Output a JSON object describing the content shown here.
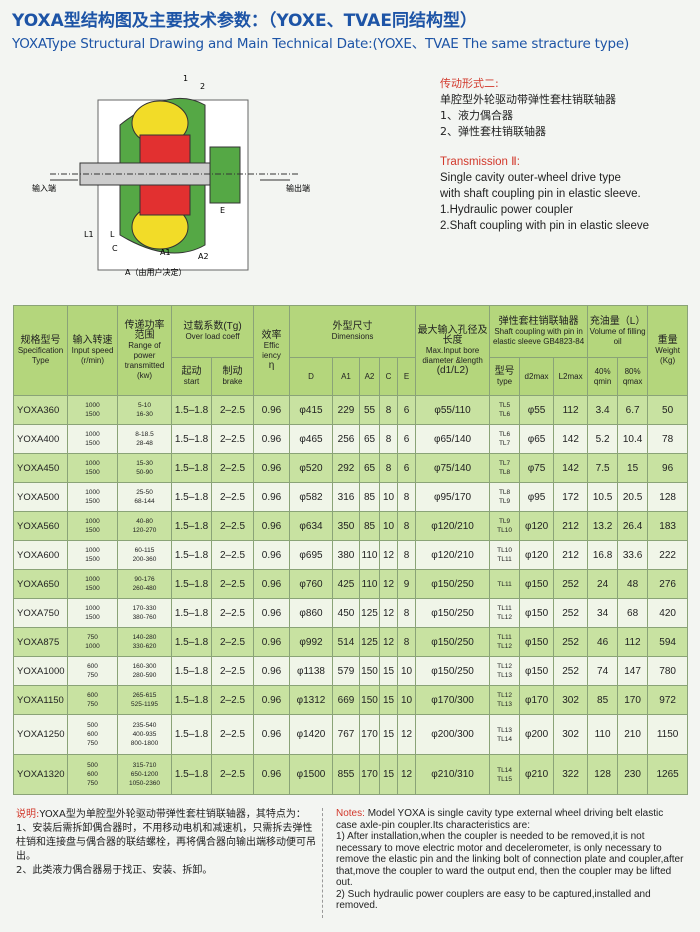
{
  "header": {
    "title_cn": "YOXA型结构图及主要技术参数：（YOXE、TVAE同结构型）",
    "title_en": "YOXAType Structural Drawing and Main Technical Date:(YOXE、TVAE The same stracture type)"
  },
  "diagram": {
    "labels": [
      "1",
      "2",
      "E",
      "L1",
      "L",
      "C",
      "A1",
      "A2",
      "A（由用户决定）",
      "输入端",
      "输出端"
    ]
  },
  "transmission": {
    "title_cn": "传动形式二:",
    "lines_cn": [
      "单腔型外轮驱动带弹性套柱销联轴器",
      "1、液力偶合器",
      "2、弹性套柱销联轴器"
    ],
    "title_en": "Transmission Ⅱ:",
    "lines_en": [
      "Single cavity outer-wheel drive type",
      "with shaft coupling pin in elastic sleeve.",
      "1.Hydraulic power coupler",
      "2.Shaft coupling with pin in elastic sleeve"
    ]
  },
  "table": {
    "headers": {
      "model_cn": "规格型号",
      "model_en": "Specification Type",
      "speed_cn": "输入转速",
      "speed_en": "Input speed",
      "speed_unit": "(r/min)",
      "power_cn": "传递功率",
      "power_cn2": "范围",
      "power_en": "Range of power transmitted",
      "power_unit": "(kw)",
      "overload_cn": "过载系数(Tg)",
      "overload_en": "Over load coeff",
      "start_cn": "起动",
      "start_en": "start",
      "brake_cn": "制动",
      "brake_en": "brake",
      "eff_cn": "效率",
      "eff_en": "Effic iency",
      "eff_sym": "η",
      "dims_cn": "外型尺寸",
      "dims_en": "Dimensions",
      "dims_cols": [
        "D",
        "A1",
        "A2",
        "C",
        "E"
      ],
      "bore_cn": "最大输入孔径及长度",
      "bore_en": "Max.Input bore diameter &length",
      "bore_unit": "(d1/L2)",
      "coupling_cn": "弹性套柱销联轴器",
      "coupling_en": "Shaft coupling with pin in elastic sleeve GB4823-84",
      "type_cn": "型号",
      "type_en": "type",
      "d2max": "d2max",
      "L2max": "L2max",
      "oil_cn": "充油量（L）",
      "oil_en": "Volume of filling oil",
      "oil_min": "40% qmin",
      "oil_max": "80% qmax",
      "weight_cn": "重量",
      "weight_en": "Weight",
      "weight_unit": "(Kg)"
    },
    "rows": [
      {
        "model": "YOXA360",
        "speeds": [
          1000,
          1500
        ],
        "power": [
          "5-10",
          "16-30"
        ],
        "start": "1.5–1.8",
        "brake": "2–2.5",
        "eff": 0.96,
        "D": "φ415",
        "A1": 229,
        "A2": 55,
        "C": 8,
        "E": 6,
        "bore": "φ55/110",
        "types": [
          "TL5",
          "TL6"
        ],
        "d2max": "φ55",
        "L2max": 112,
        "oil_min": 3.4,
        "oil_max": 6.7,
        "weight": 50
      },
      {
        "model": "YOXA400",
        "speeds": [
          1000,
          1500
        ],
        "power": [
          "8-18.5",
          "28-48"
        ],
        "start": "1.5–1.8",
        "brake": "2–2.5",
        "eff": 0.96,
        "D": "φ465",
        "A1": 256,
        "A2": 65,
        "C": 8,
        "E": 6,
        "bore": "φ65/140",
        "types": [
          "TL6",
          "TL7"
        ],
        "d2max": "φ65",
        "L2max": 142,
        "oil_min": 5.2,
        "oil_max": 10.4,
        "weight": 78
      },
      {
        "model": "YOXA450",
        "speeds": [
          1000,
          1500
        ],
        "power": [
          "15-30",
          "50-90"
        ],
        "start": "1.5–1.8",
        "brake": "2–2.5",
        "eff": 0.96,
        "D": "φ520",
        "A1": 292,
        "A2": 65,
        "C": 8,
        "E": 6,
        "bore": "φ75/140",
        "types": [
          "TL7",
          "TL8"
        ],
        "d2max": "φ75",
        "L2max": 142,
        "oil_min": 7.5,
        "oil_max": 15,
        "weight": 96
      },
      {
        "model": "YOXA500",
        "speeds": [
          1000,
          1500
        ],
        "power": [
          "25-50",
          "68-144"
        ],
        "start": "1.5–1.8",
        "brake": "2–2.5",
        "eff": 0.96,
        "D": "φ582",
        "A1": 316,
        "A2": 85,
        "C": 10,
        "E": 8,
        "bore": "φ95/170",
        "types": [
          "TL8",
          "TL9"
        ],
        "d2max": "φ95",
        "L2max": 172,
        "oil_min": 10.5,
        "oil_max": 20.5,
        "weight": 128
      },
      {
        "model": "YOXA560",
        "speeds": [
          1000,
          1500
        ],
        "power": [
          "40-80",
          "120-270"
        ],
        "start": "1.5–1.8",
        "brake": "2–2.5",
        "eff": 0.96,
        "D": "φ634",
        "A1": 350,
        "A2": 85,
        "C": 10,
        "E": 8,
        "bore": "φ120/210",
        "types": [
          "TL9",
          "TL10"
        ],
        "d2max": "φ120",
        "L2max": 212,
        "oil_min": 13.2,
        "oil_max": 26.4,
        "weight": 183
      },
      {
        "model": "YOXA600",
        "speeds": [
          1000,
          1500
        ],
        "power": [
          "60-115",
          "200-360"
        ],
        "start": "1.5–1.8",
        "brake": "2–2.5",
        "eff": 0.96,
        "D": "φ695",
        "A1": 380,
        "A2": 110,
        "C": 12,
        "E": 8,
        "bore": "φ120/210",
        "types": [
          "TL10",
          "TL11"
        ],
        "d2max": "φ120",
        "L2max": 212,
        "oil_min": 16.8,
        "oil_max": 33.6,
        "weight": 222
      },
      {
        "model": "YOXA650",
        "speeds": [
          1000,
          1500
        ],
        "power": [
          "90-176",
          "260-480"
        ],
        "start": "1.5–1.8",
        "brake": "2–2.5",
        "eff": 0.96,
        "D": "φ760",
        "A1": 425,
        "A2": 110,
        "C": 12,
        "E": 9,
        "bore": "φ150/250",
        "types": [
          "TL11"
        ],
        "d2max": "φ150",
        "L2max": 252,
        "oil_min": 24,
        "oil_max": 48,
        "weight": 276
      },
      {
        "model": "YOXA750",
        "speeds": [
          1000,
          1500
        ],
        "power": [
          "170-330",
          "380-760"
        ],
        "start": "1.5–1.8",
        "brake": "2–2.5",
        "eff": 0.96,
        "D": "φ860",
        "A1": 450,
        "A2": 125,
        "C": 12,
        "E": 8,
        "bore": "φ150/250",
        "types": [
          "TL11",
          "TL12"
        ],
        "d2max": "φ150",
        "L2max": 252,
        "oil_min": 34,
        "oil_max": 68,
        "weight": 420
      },
      {
        "model": "YOXA875",
        "speeds": [
          750,
          1000
        ],
        "power": [
          "140-280",
          "330-620"
        ],
        "start": "1.5–1.8",
        "brake": "2–2.5",
        "eff": 0.96,
        "D": "φ992",
        "A1": 514,
        "A2": 125,
        "C": 12,
        "E": 8,
        "bore": "φ150/250",
        "types": [
          "TL11",
          "TL12"
        ],
        "d2max": "φ150",
        "L2max": 252,
        "oil_min": 46,
        "oil_max": 112,
        "weight": 594
      },
      {
        "model": "YOXA1000",
        "speeds": [
          600,
          750
        ],
        "power": [
          "160-300",
          "280-590"
        ],
        "start": "1.5–1.8",
        "brake": "2–2.5",
        "eff": 0.96,
        "D": "φ1138",
        "A1": 579,
        "A2": 150,
        "C": 15,
        "E": 10,
        "bore": "φ150/250",
        "types": [
          "TL12",
          "TL13"
        ],
        "d2max": "φ150",
        "L2max": 252,
        "oil_min": 74,
        "oil_max": 147,
        "weight": 780
      },
      {
        "model": "YOXA1150",
        "speeds": [
          600,
          750
        ],
        "power": [
          "265-615",
          "525-1195"
        ],
        "start": "1.5–1.8",
        "brake": "2–2.5",
        "eff": 0.96,
        "D": "φ1312",
        "A1": 669,
        "A2": 150,
        "C": 15,
        "E": 10,
        "bore": "φ170/300",
        "types": [
          "TL12",
          "TL13"
        ],
        "d2max": "φ170",
        "L2max": 302,
        "oil_min": 85,
        "oil_max": 170,
        "weight": 972
      },
      {
        "model": "YOXA1250",
        "speeds": [
          500,
          600,
          750
        ],
        "power": [
          "235-540",
          "400-935",
          "800-1800"
        ],
        "start": "1.5–1.8",
        "brake": "2–2.5",
        "eff": 0.96,
        "D": "φ1420",
        "A1": 767,
        "A2": 170,
        "C": 15,
        "E": 12,
        "bore": "φ200/300",
        "types": [
          "TL13",
          "TL14"
        ],
        "d2max": "φ200",
        "L2max": 302,
        "oil_min": 110,
        "oil_max": 210,
        "weight": 1150
      },
      {
        "model": "YOXA1320",
        "speeds": [
          500,
          600,
          750
        ],
        "power": [
          "315-710",
          "650-1200",
          "1050-2360"
        ],
        "start": "1.5–1.8",
        "brake": "2–2.5",
        "eff": 0.96,
        "D": "φ1500",
        "A1": 855,
        "A2": 170,
        "C": 15,
        "E": 12,
        "bore": "φ210/310",
        "types": [
          "TL14",
          "TL15"
        ],
        "d2max": "φ210",
        "L2max": 322,
        "oil_min": 128,
        "oil_max": 230,
        "weight": 1265
      }
    ]
  },
  "notes": {
    "label_cn": "说明:",
    "intro_cn": "YOXA型为单腔型外轮驱动带弹性套柱销联轴器，其特点为：",
    "items_cn": [
      "1、安装后需拆卸偶合器时，不用移动电机和减速机，只需拆去弹性柱销和连接盘与偶合器的联结螺栓，再将偶合器向输出端移动便可吊出。",
      "2、此类液力偶合器易于找正、安装、拆卸。"
    ],
    "label_en": "Notes:",
    "intro_en": "Model YOXA is single cavity type external wheel driving belt elastic case axle-pin coupler.Its characteristics are:",
    "items_en": [
      "1) After installation,when the coupler is needed to be removed,it is not necessary to move electric motor and decelerometer, is only necessary to remove the elastic pin and the linking bolt of connection plate and coupler,after that,move the coupler to ward the output end, then the coupler may be lifted out.",
      "2) Such hydraulic power couplers are easy to be captured,installed and removed."
    ]
  }
}
